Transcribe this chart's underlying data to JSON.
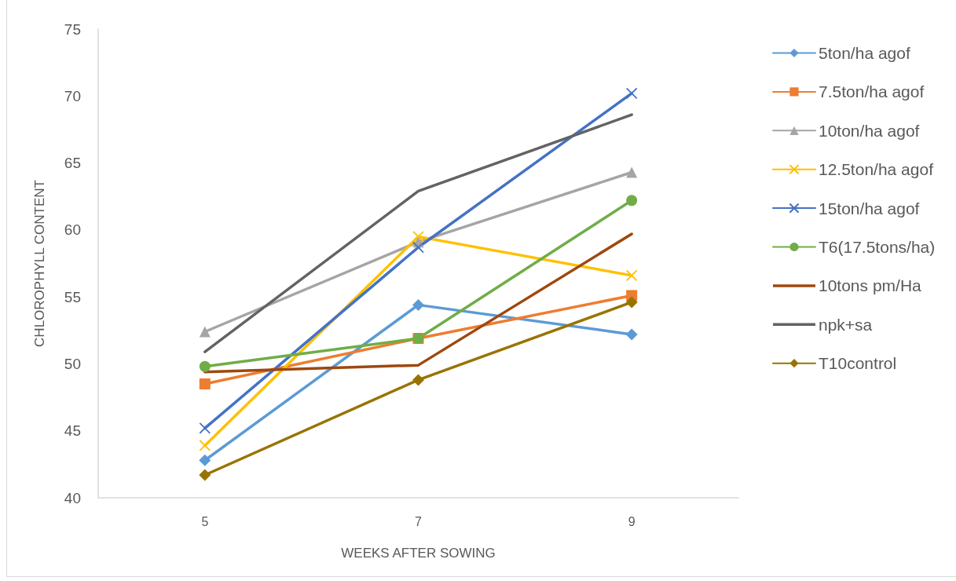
{
  "chart_data": {
    "type": "line",
    "xlabel": "WEEKS AFTER SOWING",
    "ylabel": "CHLOROPHYLL CONTENT",
    "categories": [
      "5",
      "7",
      "9"
    ],
    "ylim": [
      40,
      75
    ],
    "yticks": [
      40,
      45,
      50,
      55,
      60,
      65,
      70,
      75
    ],
    "legend": "right",
    "line_style": "solid",
    "series": [
      {
        "name": "5ton/ha agof",
        "color": "#5b9bd5",
        "marker": "diamond",
        "values": [
          42.8,
          54.4,
          52.2
        ]
      },
      {
        "name": "7.5ton/ha agof",
        "color": "#ed7d31",
        "marker": "square",
        "values": [
          48.5,
          51.9,
          55.1
        ]
      },
      {
        "name": "10ton/ha agof",
        "color": "#a5a5a5",
        "marker": "triangle",
        "values": [
          52.4,
          59.1,
          64.3
        ]
      },
      {
        "name": "12.5ton/ha agof",
        "color": "#ffc000",
        "marker": "cross",
        "values": [
          43.9,
          59.5,
          56.6
        ]
      },
      {
        "name": "15ton/ha agof",
        "color": "#4472c4",
        "marker": "cross",
        "values": [
          45.2,
          58.7,
          70.2
        ]
      },
      {
        "name": "T6(17.5tons/ha)",
        "color": "#70ad47",
        "marker": "circle",
        "values": [
          49.8,
          51.9,
          62.2
        ]
      },
      {
        "name": "10tons pm/Ha",
        "color": "#9e480e",
        "marker": "none",
        "values": [
          49.4,
          49.9,
          59.7
        ]
      },
      {
        "name": "npk+sa",
        "color": "#636363",
        "marker": "none",
        "values": [
          50.9,
          62.9,
          68.6
        ]
      },
      {
        "name": "T10control",
        "color": "#997300",
        "marker": "diamond",
        "values": [
          41.7,
          48.8,
          54.6
        ]
      }
    ]
  }
}
